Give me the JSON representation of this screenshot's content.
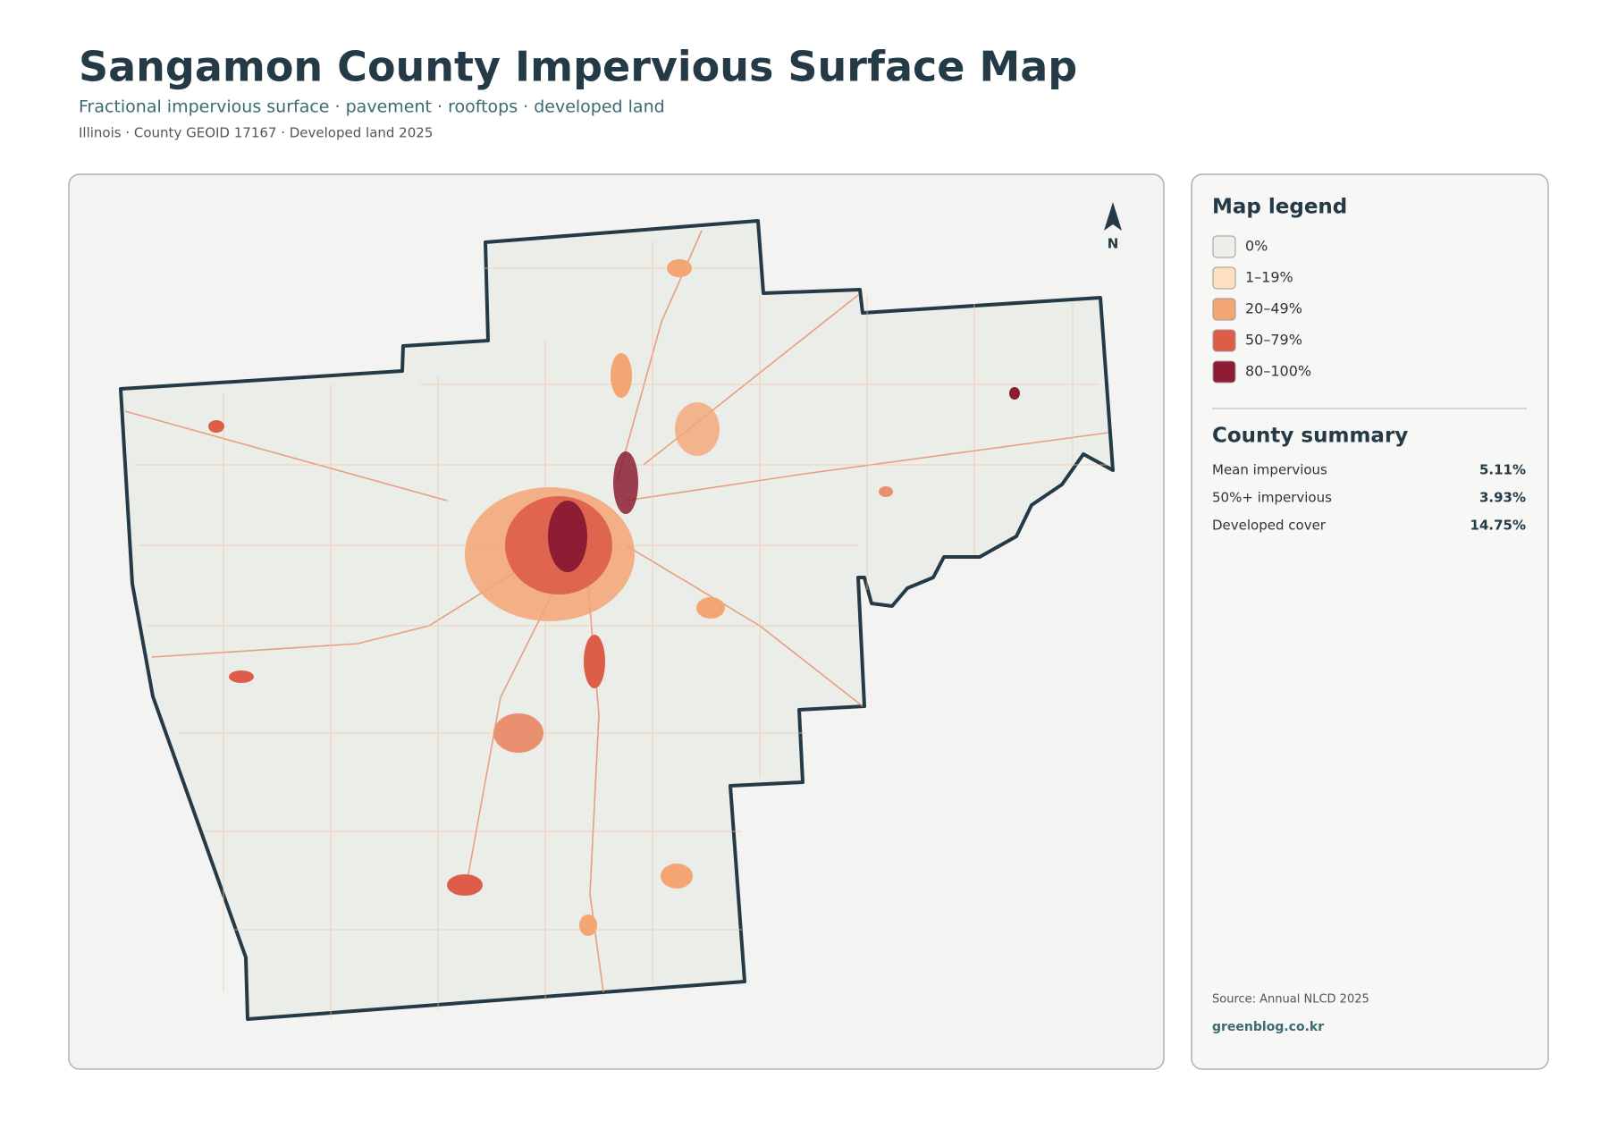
{
  "header": {
    "title": "Sangamon County Impervious Surface Map",
    "subtitle": "Fractional impervious surface · pavement · rooftops · developed land",
    "meta": "Illinois · County GEOID 17167 · Developed land 2025"
  },
  "map": {
    "north_label": "N"
  },
  "legend": {
    "title": "Map legend",
    "items": [
      {
        "label": "0%",
        "color": "#efeeea"
      },
      {
        "label": "1–19%",
        "color": "#fde0bf"
      },
      {
        "label": "20–49%",
        "color": "#f4a574"
      },
      {
        "label": "50–79%",
        "color": "#de5d49"
      },
      {
        "label": "80–100%",
        "color": "#8c1d32"
      }
    ]
  },
  "summary": {
    "title": "County summary",
    "rows": [
      {
        "label": "Mean impervious",
        "value": "5.11%"
      },
      {
        "label": "50%+ impervious",
        "value": "3.93%"
      },
      {
        "label": "Developed cover",
        "value": "14.75%"
      }
    ]
  },
  "footer": {
    "source": "Source: Annual NLCD 2025",
    "site": "greenblog.co.kr"
  }
}
